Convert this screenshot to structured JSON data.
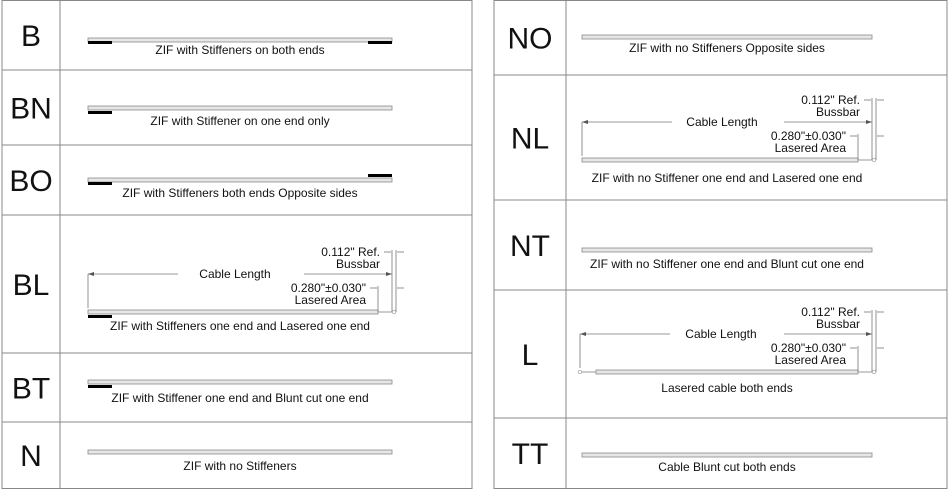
{
  "dimension_labels": {
    "cable_length": "Cable Length",
    "bussbar_value": "0.112\" Ref.",
    "bussbar_label": "Bussbar",
    "lasered_value": "0.280\"±0.030\"",
    "lasered_label": "Lasered Area"
  },
  "colors": {
    "stiffener": "#000000",
    "cable_fill": "#e6e6e6",
    "cable_edge": "#8a8a8a",
    "grid": "#888888"
  },
  "left_table": [
    {
      "code": "B",
      "caption": "ZIF with Stiffeners on both ends",
      "stiffeners": "both",
      "lasered": false
    },
    {
      "code": "BN",
      "caption": "ZIF with Stiffener on one end only",
      "stiffeners": "left",
      "lasered": false
    },
    {
      "code": "BO",
      "caption": "ZIF with Stiffeners both ends Opposite sides",
      "stiffeners": "opposite",
      "lasered": false
    },
    {
      "code": "BL",
      "caption": "ZIF with Stiffeners one end and Lasered one end",
      "stiffeners": "left",
      "lasered": true
    },
    {
      "code": "BT",
      "caption": "ZIF with Stiffener one end and Blunt cut one end",
      "stiffeners": "left",
      "lasered": false
    },
    {
      "code": "N",
      "caption": "ZIF with no Stiffeners",
      "stiffeners": "none",
      "lasered": false
    }
  ],
  "right_table": [
    {
      "code": "NO",
      "caption": "ZIF with no Stiffeners Opposite sides",
      "stiffeners": "none",
      "lasered": false
    },
    {
      "code": "NL",
      "caption": "ZIF with no Stiffener one end and Lasered one end",
      "stiffeners": "none",
      "lasered": true
    },
    {
      "code": "NT",
      "caption": "ZIF with no Stiffener one end and Blunt cut one end",
      "stiffeners": "none",
      "lasered": false
    },
    {
      "code": "L",
      "caption": "Lasered cable both ends",
      "stiffeners": "none",
      "lasered": true,
      "lasered_both": true
    },
    {
      "code": "TT",
      "caption": "Cable Blunt cut both ends",
      "stiffeners": "none",
      "lasered": false
    }
  ]
}
